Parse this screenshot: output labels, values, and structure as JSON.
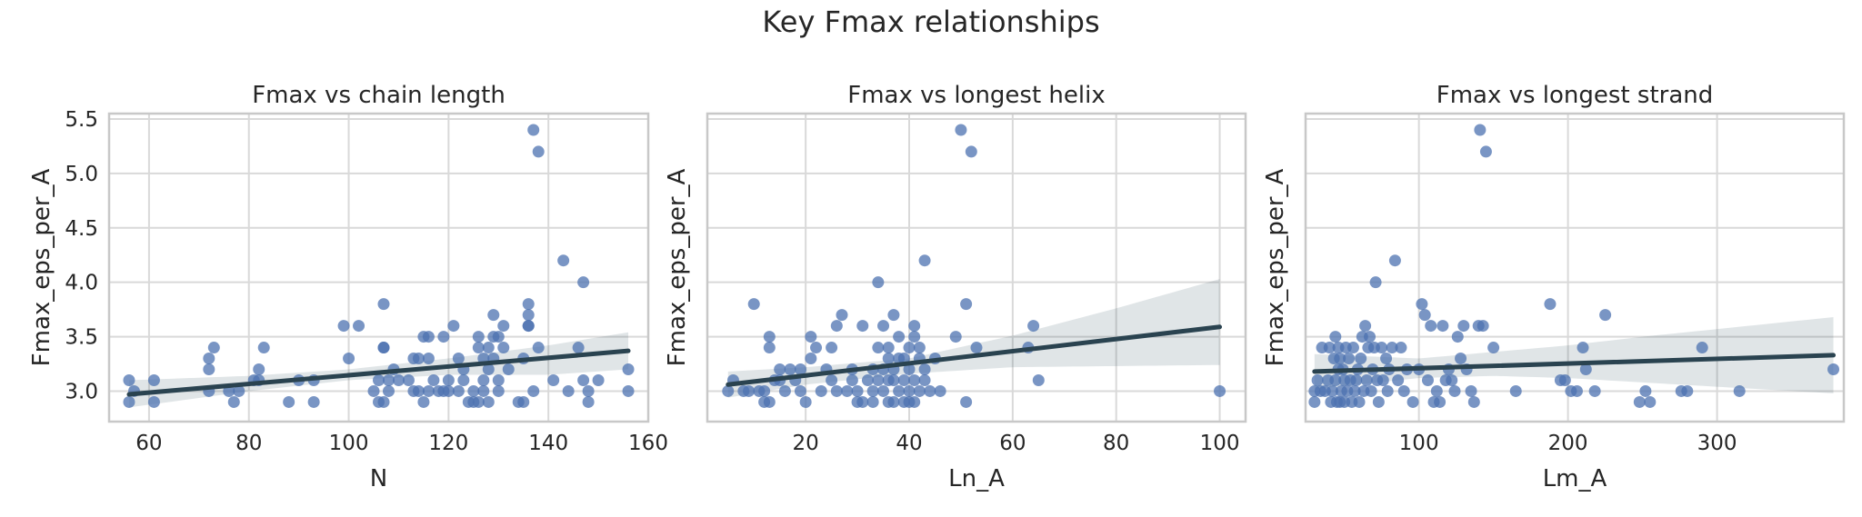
{
  "figure": {
    "suptitle": "Key Fmax relationships"
  },
  "chart_data": [
    {
      "type": "scatter",
      "title": "Fmax vs chain length",
      "xlabel": "N",
      "ylabel": "Fmax_eps_per_A",
      "xlim": [
        52,
        160
      ],
      "ylim": [
        2.72,
        5.55
      ],
      "xticks": [
        60,
        80,
        100,
        120,
        140,
        160
      ],
      "yticks": [
        3.0,
        3.5,
        4.0,
        4.5,
        5.0,
        5.5
      ],
      "ytick_labels": [
        "3.0",
        "3.5",
        "4.0",
        "4.5",
        "5.0",
        "5.5"
      ],
      "grid": true,
      "points": [
        [
          56,
          3.1
        ],
        [
          56,
          2.9
        ],
        [
          57,
          3.0
        ],
        [
          61,
          3.1
        ],
        [
          61,
          2.9
        ],
        [
          72,
          3.0
        ],
        [
          72,
          3.2
        ],
        [
          72,
          3.3
        ],
        [
          73,
          3.4
        ],
        [
          76,
          3.0
        ],
        [
          77,
          2.9
        ],
        [
          78,
          3.0
        ],
        [
          81,
          3.1
        ],
        [
          82,
          3.1
        ],
        [
          82,
          3.2
        ],
        [
          83,
          3.4
        ],
        [
          88,
          2.9
        ],
        [
          90,
          3.1
        ],
        [
          93,
          2.9
        ],
        [
          93,
          3.1
        ],
        [
          99,
          3.6
        ],
        [
          100,
          3.3
        ],
        [
          102,
          3.6
        ],
        [
          105,
          3.0
        ],
        [
          106,
          2.9
        ],
        [
          106,
          3.1
        ],
        [
          107,
          3.4
        ],
        [
          107,
          3.4
        ],
        [
          107,
          3.8
        ],
        [
          107,
          2.9
        ],
        [
          108,
          3.0
        ],
        [
          108,
          3.1
        ],
        [
          109,
          3.2
        ],
        [
          110,
          3.1
        ],
        [
          112,
          3.1
        ],
        [
          113,
          3.0
        ],
        [
          113,
          3.3
        ],
        [
          114,
          3.3
        ],
        [
          114,
          3.0
        ],
        [
          115,
          2.9
        ],
        [
          115,
          3.5
        ],
        [
          116,
          3.0
        ],
        [
          116,
          3.3
        ],
        [
          116,
          3.5
        ],
        [
          117,
          3.1
        ],
        [
          118,
          3.0
        ],
        [
          119,
          3.0
        ],
        [
          119,
          3.5
        ],
        [
          120,
          3.1
        ],
        [
          120,
          3.0
        ],
        [
          121,
          3.6
        ],
        [
          122,
          3.0
        ],
        [
          122,
          3.3
        ],
        [
          123,
          3.1
        ],
        [
          123,
          3.2
        ],
        [
          124,
          2.9
        ],
        [
          125,
          3.0
        ],
        [
          125,
          2.9
        ],
        [
          126,
          3.5
        ],
        [
          126,
          2.9
        ],
        [
          126,
          3.4
        ],
        [
          127,
          3.3
        ],
        [
          127,
          3.1
        ],
        [
          127,
          3.0
        ],
        [
          128,
          3.2
        ],
        [
          128,
          3.4
        ],
        [
          128,
          2.9
        ],
        [
          129,
          3.5
        ],
        [
          129,
          3.7
        ],
        [
          129,
          3.3
        ],
        [
          130,
          3.0
        ],
        [
          130,
          3.5
        ],
        [
          130,
          3.1
        ],
        [
          131,
          3.4
        ],
        [
          131,
          3.6
        ],
        [
          132,
          3.2
        ],
        [
          134,
          2.9
        ],
        [
          135,
          3.3
        ],
        [
          135,
          2.9
        ],
        [
          136,
          3.8
        ],
        [
          136,
          3.7
        ],
        [
          136,
          3.6
        ],
        [
          136,
          3.6
        ],
        [
          137,
          5.4
        ],
        [
          137,
          3.0
        ],
        [
          138,
          5.2
        ],
        [
          138,
          3.4
        ],
        [
          141,
          3.1
        ],
        [
          143,
          4.2
        ],
        [
          144,
          3.0
        ],
        [
          146,
          3.4
        ],
        [
          147,
          4.0
        ],
        [
          147,
          3.1
        ],
        [
          148,
          3.0
        ],
        [
          148,
          2.9
        ],
        [
          150,
          3.1
        ],
        [
          156,
          3.2
        ],
        [
          156,
          3.0
        ]
      ],
      "regression_line": [
        [
          56,
          2.97
        ],
        [
          156,
          3.37
        ]
      ],
      "confidence_band": {
        "x": [
          56,
          80,
          100,
          120,
          140,
          156
        ],
        "lower": [
          2.85,
          3.0,
          3.1,
          3.15,
          3.15,
          3.2
        ],
        "upper": [
          3.1,
          3.14,
          3.2,
          3.3,
          3.42,
          3.54
        ]
      }
    },
    {
      "type": "scatter",
      "title": "Fmax vs longest helix",
      "xlabel": "Ln_A",
      "ylabel": "Fmax_eps_per_A",
      "xlim": [
        1,
        105
      ],
      "ylim": [
        2.72,
        5.55
      ],
      "xticks": [
        20,
        40,
        60,
        80,
        100
      ],
      "grid": true,
      "points": [
        [
          5,
          3.0
        ],
        [
          6,
          3.1
        ],
        [
          8,
          3.0
        ],
        [
          9,
          3.0
        ],
        [
          10,
          3.8
        ],
        [
          11,
          3.0
        ],
        [
          12,
          2.9
        ],
        [
          12,
          3.0
        ],
        [
          13,
          3.4
        ],
        [
          13,
          2.9
        ],
        [
          13,
          3.5
        ],
        [
          14,
          3.1
        ],
        [
          15,
          3.1
        ],
        [
          15,
          3.2
        ],
        [
          16,
          3.0
        ],
        [
          17,
          3.2
        ],
        [
          18,
          3.1
        ],
        [
          19,
          3.0
        ],
        [
          19,
          3.2
        ],
        [
          20,
          2.9
        ],
        [
          21,
          3.3
        ],
        [
          21,
          3.5
        ],
        [
          22,
          3.4
        ],
        [
          23,
          3.0
        ],
        [
          24,
          3.2
        ],
        [
          25,
          3.1
        ],
        [
          25,
          3.4
        ],
        [
          26,
          3.6
        ],
        [
          26,
          3.0
        ],
        [
          27,
          3.7
        ],
        [
          28,
          3.0
        ],
        [
          29,
          3.2
        ],
        [
          29,
          3.1
        ],
        [
          30,
          2.9
        ],
        [
          30,
          3.0
        ],
        [
          31,
          3.6
        ],
        [
          31,
          2.9
        ],
        [
          32,
          3.1
        ],
        [
          33,
          3.2
        ],
        [
          33,
          3.0
        ],
        [
          33,
          2.9
        ],
        [
          34,
          3.1
        ],
        [
          34,
          3.4
        ],
        [
          34,
          4.0
        ],
        [
          35,
          3.0
        ],
        [
          35,
          3.2
        ],
        [
          35,
          3.6
        ],
        [
          36,
          3.1
        ],
        [
          36,
          3.4
        ],
        [
          36,
          3.3
        ],
        [
          36,
          2.9
        ],
        [
          37,
          3.7
        ],
        [
          37,
          3.2
        ],
        [
          37,
          3.1
        ],
        [
          37,
          2.9
        ],
        [
          38,
          3.3
        ],
        [
          38,
          3.0
        ],
        [
          38,
          3.5
        ],
        [
          39,
          3.1
        ],
        [
          39,
          3.3
        ],
        [
          39,
          2.9
        ],
        [
          40,
          3.4
        ],
        [
          40,
          3.2
        ],
        [
          40,
          3.0
        ],
        [
          40,
          2.9
        ],
        [
          41,
          3.6
        ],
        [
          41,
          3.5
        ],
        [
          41,
          3.1
        ],
        [
          41,
          2.9
        ],
        [
          42,
          3.3
        ],
        [
          42,
          3.0
        ],
        [
          42,
          3.4
        ],
        [
          43,
          3.2
        ],
        [
          43,
          3.1
        ],
        [
          43,
          4.2
        ],
        [
          44,
          3.0
        ],
        [
          45,
          3.3
        ],
        [
          46,
          3.0
        ],
        [
          49,
          3.5
        ],
        [
          50,
          5.4
        ],
        [
          51,
          2.9
        ],
        [
          51,
          3.8
        ],
        [
          52,
          5.2
        ],
        [
          53,
          3.4
        ],
        [
          63,
          3.4
        ],
        [
          64,
          3.6
        ],
        [
          65,
          3.1
        ],
        [
          100,
          3.0
        ]
      ],
      "regression_line": [
        [
          5,
          3.06
        ],
        [
          100,
          3.59
        ]
      ],
      "confidence_band": {
        "x": [
          5,
          20,
          40,
          60,
          80,
          100
        ],
        "lower": [
          2.94,
          3.06,
          3.16,
          3.22,
          3.23,
          3.24
        ],
        "upper": [
          3.18,
          3.22,
          3.3,
          3.51,
          3.76,
          4.03
        ]
      }
    },
    {
      "type": "scatter",
      "title": "Fmax vs longest strand",
      "xlabel": "Lm_A",
      "ylabel": "Fmax_eps_per_A",
      "xlim": [
        24,
        385
      ],
      "ylim": [
        2.72,
        5.55
      ],
      "xticks": [
        100,
        200,
        300
      ],
      "grid": true,
      "points": [
        [
          30,
          3.0
        ],
        [
          30,
          2.9
        ],
        [
          32,
          3.1
        ],
        [
          34,
          3.0
        ],
        [
          35,
          3.4
        ],
        [
          37,
          3.0
        ],
        [
          39,
          3.1
        ],
        [
          40,
          3.4
        ],
        [
          41,
          2.9
        ],
        [
          42,
          3.0
        ],
        [
          43,
          3.3
        ],
        [
          44,
          3.5
        ],
        [
          44,
          3.1
        ],
        [
          45,
          2.9
        ],
        [
          46,
          3.4
        ],
        [
          46,
          3.2
        ],
        [
          47,
          3.3
        ],
        [
          47,
          2.9
        ],
        [
          48,
          3.0
        ],
        [
          49,
          3.2
        ],
        [
          50,
          3.1
        ],
        [
          50,
          2.9
        ],
        [
          51,
          3.4
        ],
        [
          52,
          3.0
        ],
        [
          53,
          3.3
        ],
        [
          54,
          3.1
        ],
        [
          55,
          2.9
        ],
        [
          56,
          3.4
        ],
        [
          57,
          3.0
        ],
        [
          58,
          3.1
        ],
        [
          59,
          3.2
        ],
        [
          60,
          2.9
        ],
        [
          61,
          3.3
        ],
        [
          62,
          3.5
        ],
        [
          63,
          3.0
        ],
        [
          64,
          3.6
        ],
        [
          65,
          3.1
        ],
        [
          66,
          3.4
        ],
        [
          67,
          3.5
        ],
        [
          68,
          3.0
        ],
        [
          69,
          3.2
        ],
        [
          70,
          3.4
        ],
        [
          71,
          4.0
        ],
        [
          72,
          3.1
        ],
        [
          73,
          2.9
        ],
        [
          75,
          3.4
        ],
        [
          76,
          3.1
        ],
        [
          78,
          3.3
        ],
        [
          79,
          3.0
        ],
        [
          80,
          3.2
        ],
        [
          82,
          3.4
        ],
        [
          84,
          4.2
        ],
        [
          86,
          3.1
        ],
        [
          88,
          3.4
        ],
        [
          90,
          3.0
        ],
        [
          92,
          3.2
        ],
        [
          96,
          2.9
        ],
        [
          100,
          3.2
        ],
        [
          102,
          3.8
        ],
        [
          104,
          3.7
        ],
        [
          106,
          3.1
        ],
        [
          108,
          3.6
        ],
        [
          110,
          2.9
        ],
        [
          112,
          3.0
        ],
        [
          114,
          2.9
        ],
        [
          116,
          3.6
        ],
        [
          118,
          3.1
        ],
        [
          120,
          3.2
        ],
        [
          122,
          3.1
        ],
        [
          124,
          3.0
        ],
        [
          126,
          3.5
        ],
        [
          128,
          3.3
        ],
        [
          130,
          3.6
        ],
        [
          132,
          3.2
        ],
        [
          135,
          3.0
        ],
        [
          137,
          2.9
        ],
        [
          140,
          3.6
        ],
        [
          141,
          5.4
        ],
        [
          143,
          3.6
        ],
        [
          145,
          5.2
        ],
        [
          150,
          3.4
        ],
        [
          165,
          3.0
        ],
        [
          188,
          3.8
        ],
        [
          195,
          3.1
        ],
        [
          198,
          3.1
        ],
        [
          202,
          3.0
        ],
        [
          206,
          3.0
        ],
        [
          210,
          3.4
        ],
        [
          212,
          3.2
        ],
        [
          218,
          3.0
        ],
        [
          225,
          3.7
        ],
        [
          248,
          2.9
        ],
        [
          252,
          3.0
        ],
        [
          255,
          2.9
        ],
        [
          276,
          3.0
        ],
        [
          280,
          3.0
        ],
        [
          290,
          3.4
        ],
        [
          315,
          3.0
        ],
        [
          378,
          3.2
        ]
      ],
      "regression_line": [
        [
          30,
          3.18
        ],
        [
          378,
          3.33
        ]
      ],
      "confidence_band": {
        "x": [
          30,
          100,
          150,
          200,
          250,
          300,
          378
        ],
        "lower": [
          3.02,
          3.12,
          3.14,
          3.12,
          3.08,
          3.04,
          2.98
        ],
        "upper": [
          3.34,
          3.3,
          3.36,
          3.42,
          3.5,
          3.57,
          3.68
        ]
      }
    }
  ]
}
